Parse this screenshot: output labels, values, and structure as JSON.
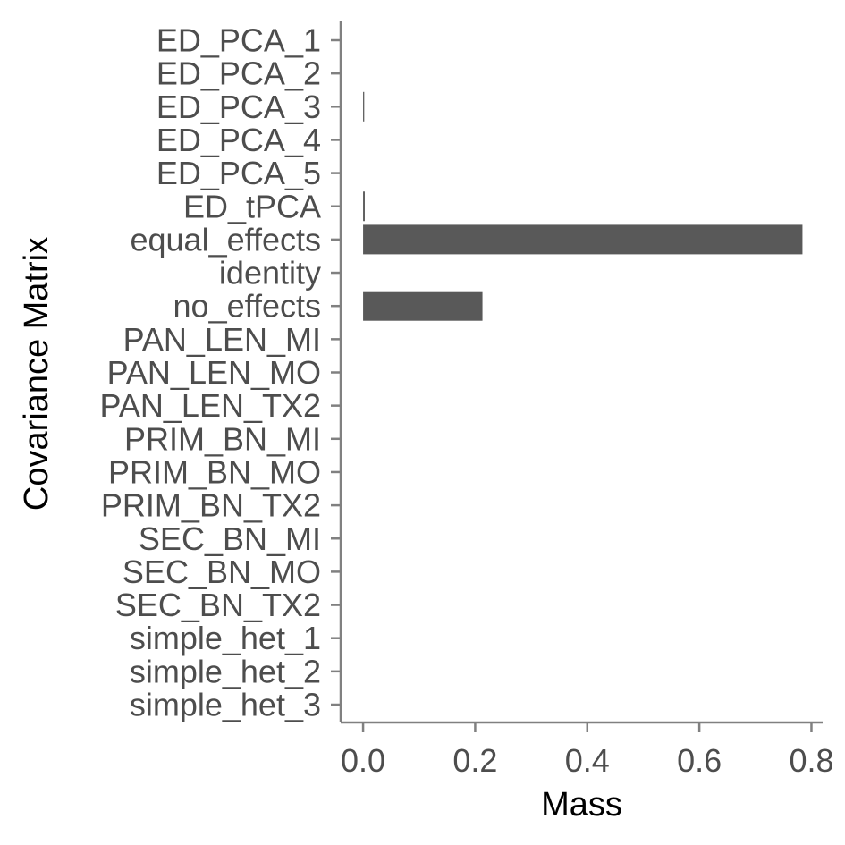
{
  "chart_data": {
    "type": "bar",
    "orientation": "horizontal",
    "title": "",
    "xlabel": "Mass",
    "ylabel": "Covariance Matrix",
    "categories": [
      "ED_PCA_1",
      "ED_PCA_2",
      "ED_PCA_3",
      "ED_PCA_4",
      "ED_PCA_5",
      "ED_tPCA",
      "equal_effects",
      "identity",
      "no_effects",
      "PAN_LEN_MI",
      "PAN_LEN_MO",
      "PAN_LEN_TX2",
      "PRIM_BN_MI",
      "PRIM_BN_MO",
      "PRIM_BN_TX2",
      "SEC_BN_MI",
      "SEC_BN_MO",
      "SEC_BN_TX2",
      "simple_het_1",
      "simple_het_2",
      "simple_het_3"
    ],
    "values": [
      0,
      0,
      0.002,
      0,
      0,
      0.003,
      0.784,
      0,
      0.213,
      0,
      0,
      0,
      0,
      0,
      0,
      0,
      0,
      0,
      0,
      0,
      0
    ],
    "xlim": [
      -0.04,
      0.82
    ],
    "xticks": [
      0.0,
      0.2,
      0.4,
      0.6,
      0.8
    ],
    "xtick_labels": [
      "0.0",
      "0.2",
      "0.4",
      "0.6",
      "0.8"
    ],
    "grid": false,
    "legend": "none",
    "colors": {
      "bar": "#595959",
      "axis": "#808080",
      "tick_label": "#4d4d4d",
      "title": "#000000"
    }
  }
}
